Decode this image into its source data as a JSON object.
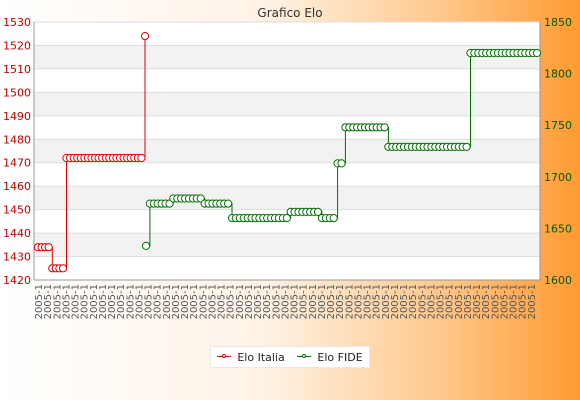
{
  "chart_data": {
    "type": "line",
    "title": "Grafico Elo",
    "left_axis": {
      "min": 1420,
      "max": 1530,
      "step": 10,
      "ticks": [
        1420,
        1430,
        1440,
        1450,
        1460,
        1470,
        1480,
        1490,
        1500,
        1510,
        1520,
        1530
      ]
    },
    "right_axis": {
      "min": 1600,
      "max": 1850,
      "step": 50,
      "ticks": [
        1600,
        1650,
        1700,
        1750,
        1800,
        1850
      ]
    },
    "x_tick_labels": [
      "2005-1"
    ],
    "legend_position": "bottom-center",
    "series": [
      {
        "name": "Elo Italia",
        "axis": "left",
        "color": "#e00000",
        "values": [
          1434,
          1434,
          1434,
          1434,
          1425,
          1425,
          1425,
          1425,
          1472,
          1472,
          1472,
          1472,
          1472,
          1472,
          1472,
          1472,
          1472,
          1472,
          1472,
          1472,
          1472,
          1472,
          1472,
          1472,
          1472,
          1472,
          1472,
          1472,
          1472,
          1472,
          1524
        ]
      },
      {
        "name": "Elo FIDE",
        "axis": "right",
        "color": "#007000",
        "values": [
          1633,
          1674,
          1674,
          1674,
          1674,
          1674,
          1674,
          1679,
          1679,
          1679,
          1679,
          1679,
          1679,
          1679,
          1679,
          1674,
          1674,
          1674,
          1674,
          1674,
          1674,
          1674,
          1660,
          1660,
          1660,
          1660,
          1660,
          1660,
          1660,
          1660,
          1660,
          1660,
          1660,
          1660,
          1660,
          1660,
          1660,
          1666,
          1666,
          1666,
          1666,
          1666,
          1666,
          1666,
          1666,
          1660,
          1660,
          1660,
          1660,
          1713,
          1713,
          1748,
          1748,
          1748,
          1748,
          1748,
          1748,
          1748,
          1748,
          1748,
          1748,
          1748,
          1729,
          1729,
          1729,
          1729,
          1729,
          1729,
          1729,
          1729,
          1729,
          1729,
          1729,
          1729,
          1729,
          1729,
          1729,
          1729,
          1729,
          1729,
          1729,
          1729,
          1729,
          1820,
          1820,
          1820,
          1820,
          1820,
          1820,
          1820,
          1820,
          1820,
          1820,
          1820,
          1820,
          1820,
          1820,
          1820,
          1820,
          1820,
          1820
        ]
      }
    ]
  }
}
